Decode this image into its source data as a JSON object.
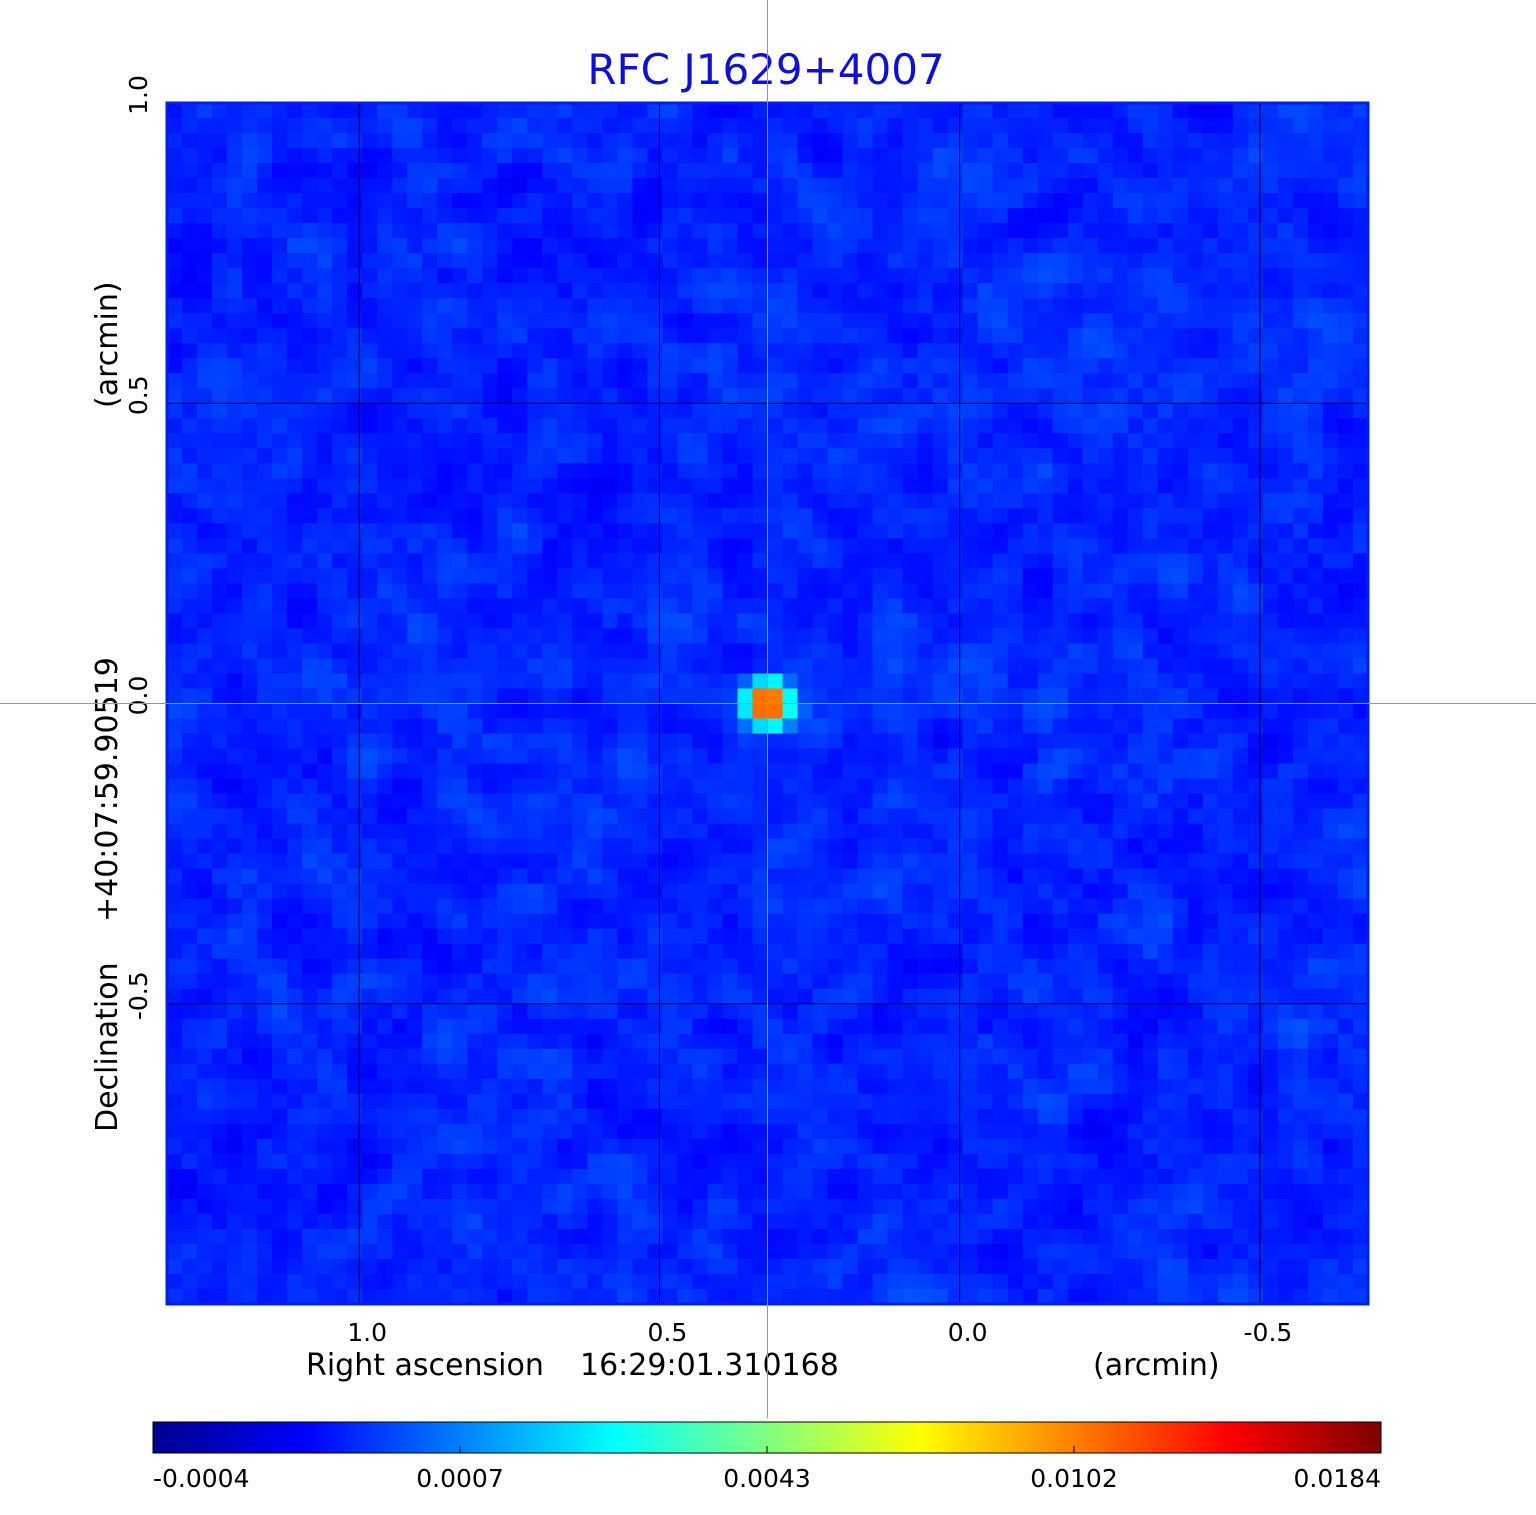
{
  "chart_data": {
    "type": "heatmap",
    "title": "RFC J1629+4007",
    "xlabel": "Right ascension",
    "x_center": "16:29:01.310168",
    "x_unit": "(arcmin)",
    "ylabel": "Declination",
    "y_center": "+40:07:59.90519",
    "y_unit": "(arcmin)",
    "xlim": [
      1.32,
      -0.68
    ],
    "ylim": [
      -1.0,
      1.0
    ],
    "x_ticks": [
      {
        "value": 1.0,
        "label": "1.0"
      },
      {
        "value": 0.5,
        "label": "0.5"
      },
      {
        "value": 0.0,
        "label": "0.0"
      },
      {
        "value": -0.5,
        "label": "-0.5"
      }
    ],
    "y_ticks": [
      {
        "value": 1.0,
        "label": "1.0"
      },
      {
        "value": 0.5,
        "label": "0.5"
      },
      {
        "value": 0.0,
        "label": "0.0"
      },
      {
        "value": -0.5,
        "label": "-0.5"
      }
    ],
    "grid": true,
    "crosshair": {
      "x": 0.32,
      "y": 0.0,
      "color": "#00ff00"
    },
    "source": {
      "ra_offset": 0.32,
      "dec_offset": 0.0,
      "peak": 0.0184,
      "background": 0.0
    },
    "colorbar": {
      "colormap": "jet",
      "min": -0.0004,
      "max": 0.0184,
      "tick_labels": [
        "-0.0004",
        "0.0007",
        "0.0043",
        "0.0102",
        "0.0184"
      ]
    },
    "colors": {
      "title": "#1010d0",
      "grid": "#000000",
      "crosshair": "#00ff00",
      "frame": "#0020e0"
    }
  }
}
